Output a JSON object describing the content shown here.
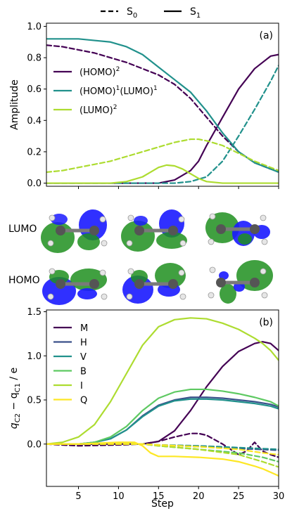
{
  "figure": {
    "top_legend": {
      "items": [
        {
          "label": "S",
          "sub": "0",
          "style": "dashed"
        },
        {
          "label": "S",
          "sub": "1",
          "style": "solid"
        }
      ]
    },
    "orbital_panel": {
      "row_labels": [
        "LUMO",
        "HOMO"
      ]
    }
  },
  "chart_data": [
    {
      "type": "line",
      "panel_label": "(a)",
      "xlabel": "",
      "ylabel": "Amplitude",
      "xlim": [
        1,
        30
      ],
      "ylim": [
        -0.02,
        1.02
      ],
      "xticks": [
        5,
        10,
        15,
        20,
        25,
        30
      ],
      "yticks": [
        0.0,
        0.2,
        0.4,
        0.6,
        0.8,
        1.0
      ],
      "ytick_labels": [
        "0.0",
        "0.2",
        "0.4",
        "0.6",
        "0.8",
        "1.0"
      ],
      "legend": "left",
      "series": [
        {
          "name": "(HOMO)",
          "sup": "2",
          "color": "#440154",
          "style": "solid",
          "x": [
            1,
            3,
            5,
            7,
            9,
            11,
            13,
            15,
            17,
            19,
            20,
            21,
            23,
            25,
            27,
            29,
            30
          ],
          "y": [
            0.0,
            0.0,
            0.0,
            0.0,
            0.0,
            0.0,
            0.0,
            0.0,
            0.02,
            0.08,
            0.14,
            0.24,
            0.42,
            0.6,
            0.73,
            0.81,
            0.82
          ]
        },
        {
          "name": "(HOMO)",
          "sup": "2",
          "color": "#440154",
          "style": "dashed",
          "x": [
            1,
            3,
            5,
            7,
            9,
            11,
            13,
            15,
            17,
            19,
            21,
            23,
            25,
            27,
            29,
            30
          ],
          "y": [
            0.88,
            0.87,
            0.85,
            0.83,
            0.8,
            0.77,
            0.73,
            0.69,
            0.63,
            0.54,
            0.42,
            0.3,
            0.2,
            0.13,
            0.09,
            0.08
          ]
        },
        {
          "name": "(HOMO)",
          "sup": "1",
          "name2": "(LUMO)",
          "sup2": "1",
          "color": "#21918c",
          "style": "solid",
          "x": [
            1,
            3,
            5,
            7,
            9,
            11,
            13,
            15,
            17,
            19,
            21,
            23,
            25,
            27,
            29,
            30
          ],
          "y": [
            0.92,
            0.92,
            0.92,
            0.91,
            0.9,
            0.87,
            0.82,
            0.74,
            0.66,
            0.58,
            0.46,
            0.32,
            0.2,
            0.13,
            0.09,
            0.07
          ]
        },
        {
          "name": "(HOMO)",
          "sup": "1",
          "name2": "(LUMO)",
          "sup2": "1",
          "color": "#21918c",
          "style": "dashed",
          "x": [
            1,
            3,
            5,
            7,
            9,
            11,
            13,
            15,
            17,
            19,
            21,
            23,
            25,
            27,
            29,
            30
          ],
          "y": [
            0.0,
            0.0,
            0.0,
            0.0,
            0.0,
            0.0,
            0.0,
            0.0,
            0.0,
            0.01,
            0.04,
            0.14,
            0.3,
            0.47,
            0.65,
            0.75
          ]
        },
        {
          "name": "(LUMO)",
          "sup": "2",
          "color": "#addc30",
          "style": "solid",
          "x": [
            1,
            3,
            5,
            7,
            9,
            11,
            13,
            14,
            15,
            16,
            17,
            18,
            19,
            20,
            21,
            23,
            25,
            27,
            29,
            30
          ],
          "y": [
            0.0,
            0.0,
            0.0,
            0.0,
            0.0,
            0.01,
            0.04,
            0.07,
            0.1,
            0.115,
            0.11,
            0.09,
            0.06,
            0.03,
            0.01,
            0.0,
            0.0,
            0.0,
            0.0,
            0.0
          ]
        },
        {
          "name": "(LUMO)",
          "sup": "2",
          "color": "#addc30",
          "style": "dashed",
          "x": [
            1,
            3,
            5,
            7,
            9,
            11,
            13,
            15,
            17,
            19,
            20,
            21,
            23,
            25,
            27,
            29,
            30
          ],
          "y": [
            0.07,
            0.08,
            0.1,
            0.12,
            0.14,
            0.17,
            0.2,
            0.23,
            0.26,
            0.28,
            0.28,
            0.27,
            0.24,
            0.19,
            0.14,
            0.1,
            0.08
          ]
        }
      ]
    },
    {
      "type": "line",
      "panel_label": "(b)",
      "xlabel": "Step",
      "ylabel": "q",
      "ylabel_parts": {
        "a": "C2",
        "mid": " − q",
        "b": "C1",
        "end": " / e"
      },
      "xlim": [
        1,
        30
      ],
      "ylim": [
        -0.48,
        1.52
      ],
      "xticks": [
        5,
        10,
        15,
        20,
        25,
        30
      ],
      "yticks": [
        -0.5,
        0.0,
        0.5,
        1.0,
        1.5
      ],
      "ytick_labels": [
        "",
        "0.0",
        "0.5",
        "1.0",
        "1.5"
      ],
      "legend": "top-left",
      "series": [
        {
          "name": "M",
          "color": "#440154",
          "style": "solid",
          "x": [
            1,
            5,
            10,
            13,
            15,
            17,
            19,
            21,
            23,
            25,
            27,
            28,
            29,
            30
          ],
          "y": [
            0.0,
            0.0,
            0.0,
            0.0,
            0.03,
            0.15,
            0.38,
            0.65,
            0.88,
            1.05,
            1.14,
            1.16,
            1.14,
            1.06
          ]
        },
        {
          "name": "M",
          "color": "#440154",
          "style": "dashed",
          "x": [
            1,
            5,
            10,
            13,
            15,
            17,
            19,
            20,
            21,
            23,
            25,
            26,
            27,
            28,
            29,
            30
          ],
          "y": [
            0.0,
            -0.02,
            -0.01,
            0.0,
            0.03,
            0.08,
            0.12,
            0.12,
            0.1,
            0.0,
            -0.12,
            -0.08,
            0.02,
            -0.08,
            -0.12,
            -0.15
          ]
        },
        {
          "name": "H",
          "color": "#3b528b",
          "style": "solid",
          "x": [
            1,
            5,
            7,
            9,
            11,
            13,
            15,
            17,
            19,
            21,
            23,
            25,
            27,
            29,
            30
          ],
          "y": [
            0.0,
            0.0,
            0.02,
            0.06,
            0.16,
            0.32,
            0.44,
            0.5,
            0.53,
            0.53,
            0.52,
            0.5,
            0.48,
            0.45,
            0.42
          ]
        },
        {
          "name": "H",
          "color": "#3b528b",
          "style": "dashed",
          "x": [
            1,
            5,
            10,
            13,
            15,
            20,
            25,
            30
          ],
          "y": [
            0.0,
            0.0,
            0.0,
            0.0,
            -0.01,
            -0.03,
            -0.05,
            -0.07
          ]
        },
        {
          "name": "V",
          "color": "#21918c",
          "style": "solid",
          "x": [
            1,
            5,
            7,
            9,
            11,
            13,
            15,
            17,
            19,
            21,
            23,
            25,
            27,
            29,
            30
          ],
          "y": [
            0.0,
            0.0,
            0.02,
            0.06,
            0.16,
            0.31,
            0.43,
            0.49,
            0.51,
            0.51,
            0.5,
            0.48,
            0.46,
            0.43,
            0.4
          ]
        },
        {
          "name": "V",
          "color": "#21918c",
          "style": "dashed",
          "x": [
            1,
            5,
            10,
            13,
            15,
            20,
            25,
            30
          ],
          "y": [
            0.0,
            0.0,
            0.0,
            0.0,
            -0.01,
            -0.02,
            -0.04,
            -0.06
          ]
        },
        {
          "name": "B",
          "color": "#5ec962",
          "style": "solid",
          "x": [
            1,
            5,
            7,
            9,
            11,
            13,
            15,
            17,
            19,
            21,
            23,
            25,
            27,
            29,
            30
          ],
          "y": [
            0.0,
            0.0,
            0.02,
            0.08,
            0.2,
            0.38,
            0.52,
            0.59,
            0.62,
            0.62,
            0.6,
            0.57,
            0.53,
            0.48,
            0.43
          ]
        },
        {
          "name": "B",
          "color": "#5ec962",
          "style": "dashed",
          "x": [
            1,
            5,
            10,
            13,
            15,
            20,
            25,
            28,
            30
          ],
          "y": [
            0.0,
            0.0,
            0.0,
            0.0,
            -0.02,
            -0.06,
            -0.1,
            -0.15,
            -0.2
          ]
        },
        {
          "name": "I",
          "color": "#addc30",
          "style": "solid",
          "x": [
            1,
            3,
            5,
            7,
            9,
            11,
            13,
            15,
            17,
            19,
            21,
            23,
            25,
            27,
            28,
            29,
            30
          ],
          "y": [
            0.0,
            0.02,
            0.08,
            0.22,
            0.48,
            0.8,
            1.12,
            1.33,
            1.41,
            1.43,
            1.42,
            1.37,
            1.3,
            1.2,
            1.14,
            1.06,
            0.95
          ]
        },
        {
          "name": "I",
          "color": "#addc30",
          "style": "dashed",
          "x": [
            1,
            5,
            10,
            13,
            15,
            20,
            25,
            28,
            30
          ],
          "y": [
            0.0,
            0.0,
            0.01,
            0.0,
            -0.02,
            -0.06,
            -0.12,
            -0.2,
            -0.26
          ]
        },
        {
          "name": "Q",
          "color": "#fde725",
          "style": "solid",
          "x": [
            1,
            5,
            10,
            12,
            13,
            14,
            15,
            17,
            20,
            23,
            25,
            27,
            28,
            29,
            30
          ],
          "y": [
            0.0,
            0.0,
            0.02,
            0.02,
            -0.02,
            -0.1,
            -0.14,
            -0.14,
            -0.15,
            -0.17,
            -0.2,
            -0.25,
            -0.28,
            -0.32,
            -0.36
          ]
        },
        {
          "name": "Q",
          "color": "#fde725",
          "style": "dashed",
          "x": [
            1,
            5,
            10,
            13,
            15,
            20,
            25,
            28,
            30
          ],
          "y": [
            0.0,
            0.0,
            0.0,
            0.0,
            -0.01,
            -0.03,
            -0.06,
            -0.1,
            -0.12
          ]
        }
      ]
    }
  ],
  "orbital_colors": {
    "positive": "#1a1aff",
    "negative": "#1f8f1f",
    "bond": "#7a7a7a",
    "atom": "#e6e6e6"
  }
}
